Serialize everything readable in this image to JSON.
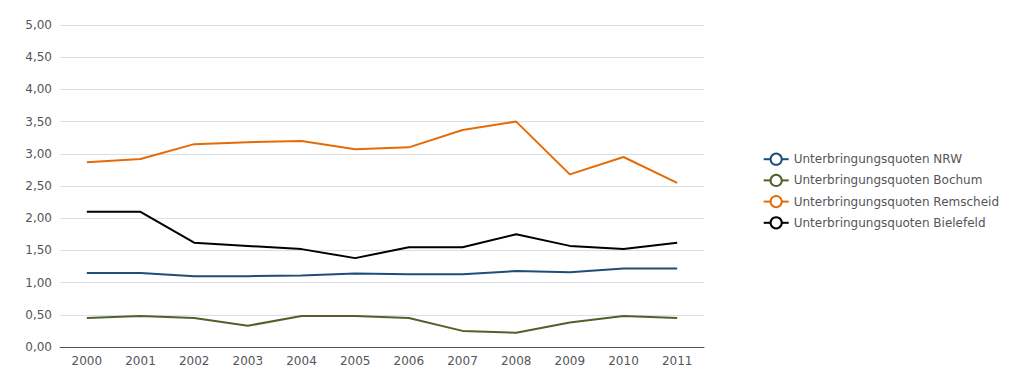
{
  "chart_data": {
    "type": "line",
    "categories": [
      "2000",
      "2001",
      "2002",
      "2003",
      "2004",
      "2005",
      "2006",
      "2007",
      "2008",
      "2009",
      "2010",
      "2011"
    ],
    "series": [
      {
        "name": "Unterbringungsquoten NRW",
        "color": "#1F4E79",
        "values": [
          1.15,
          1.15,
          1.1,
          1.1,
          1.11,
          1.14,
          1.13,
          1.13,
          1.18,
          1.16,
          1.22,
          1.22
        ]
      },
      {
        "name": "Unterbringungsquoten Bochum",
        "color": "#4F6228",
        "values": [
          0.45,
          0.48,
          0.45,
          0.33,
          0.48,
          0.48,
          0.45,
          0.25,
          0.22,
          0.38,
          0.48,
          0.45
        ]
      },
      {
        "name": "Unterbringungsquoten Remscheid",
        "color": "#E36C09",
        "values": [
          2.87,
          2.92,
          3.15,
          3.18,
          3.2,
          3.07,
          3.1,
          3.37,
          3.5,
          2.68,
          2.95,
          2.55
        ]
      },
      {
        "name": "Unterbringungsquoten Bielefeld",
        "color": "#000000",
        "values": [
          2.1,
          2.1,
          1.62,
          1.57,
          1.52,
          1.38,
          1.55,
          1.55,
          1.75,
          1.57,
          1.52,
          1.62
        ]
      }
    ],
    "ylim": [
      0.0,
      5.0
    ],
    "yticks": [
      {
        "value": 0.0,
        "label": "0,00"
      },
      {
        "value": 0.5,
        "label": "0,50"
      },
      {
        "value": 1.0,
        "label": "1,00"
      },
      {
        "value": 1.5,
        "label": "1,50"
      },
      {
        "value": 2.0,
        "label": "2,00"
      },
      {
        "value": 2.5,
        "label": "2,50"
      },
      {
        "value": 3.0,
        "label": "3,00"
      },
      {
        "value": 3.5,
        "label": "3,50"
      },
      {
        "value": 4.0,
        "label": "4,00"
      },
      {
        "value": 4.5,
        "label": "4,50"
      },
      {
        "value": 5.0,
        "label": "5,00"
      }
    ],
    "grid": true,
    "legend": "right"
  }
}
